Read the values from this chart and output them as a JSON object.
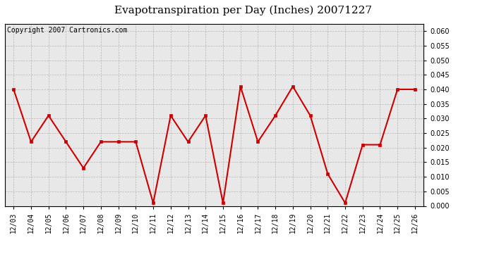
{
  "title": "Evapotranspiration per Day (Inches) 20071227",
  "copyright_text": "Copyright 2007 Cartronics.com",
  "x_labels": [
    "12/03",
    "12/04",
    "12/05",
    "12/06",
    "12/07",
    "12/08",
    "12/09",
    "12/10",
    "12/11",
    "12/12",
    "12/13",
    "12/14",
    "12/15",
    "12/16",
    "12/17",
    "12/18",
    "12/19",
    "12/20",
    "12/21",
    "12/22",
    "12/23",
    "12/24",
    "12/25",
    "12/26"
  ],
  "y_values": [
    0.04,
    0.022,
    0.031,
    0.022,
    0.013,
    0.022,
    0.022,
    0.022,
    0.001,
    0.031,
    0.022,
    0.031,
    0.001,
    0.041,
    0.022,
    0.031,
    0.041,
    0.031,
    0.011,
    0.001,
    0.021,
    0.021,
    0.04,
    0.04
  ],
  "line_color": "#cc0000",
  "marker": "s",
  "marker_size": 3,
  "ylim": [
    0.0,
    0.0625
  ],
  "yticks": [
    0.0,
    0.005,
    0.01,
    0.015,
    0.02,
    0.025,
    0.03,
    0.035,
    0.04,
    0.045,
    0.05,
    0.055,
    0.06
  ],
  "plot_bg": "#e8e8e8",
  "fig_bg": "#ffffff",
  "grid_color": "#aaaaaa",
  "title_fontsize": 11,
  "copyright_fontsize": 7,
  "tick_fontsize": 7,
  "ytick_fontsize": 7
}
